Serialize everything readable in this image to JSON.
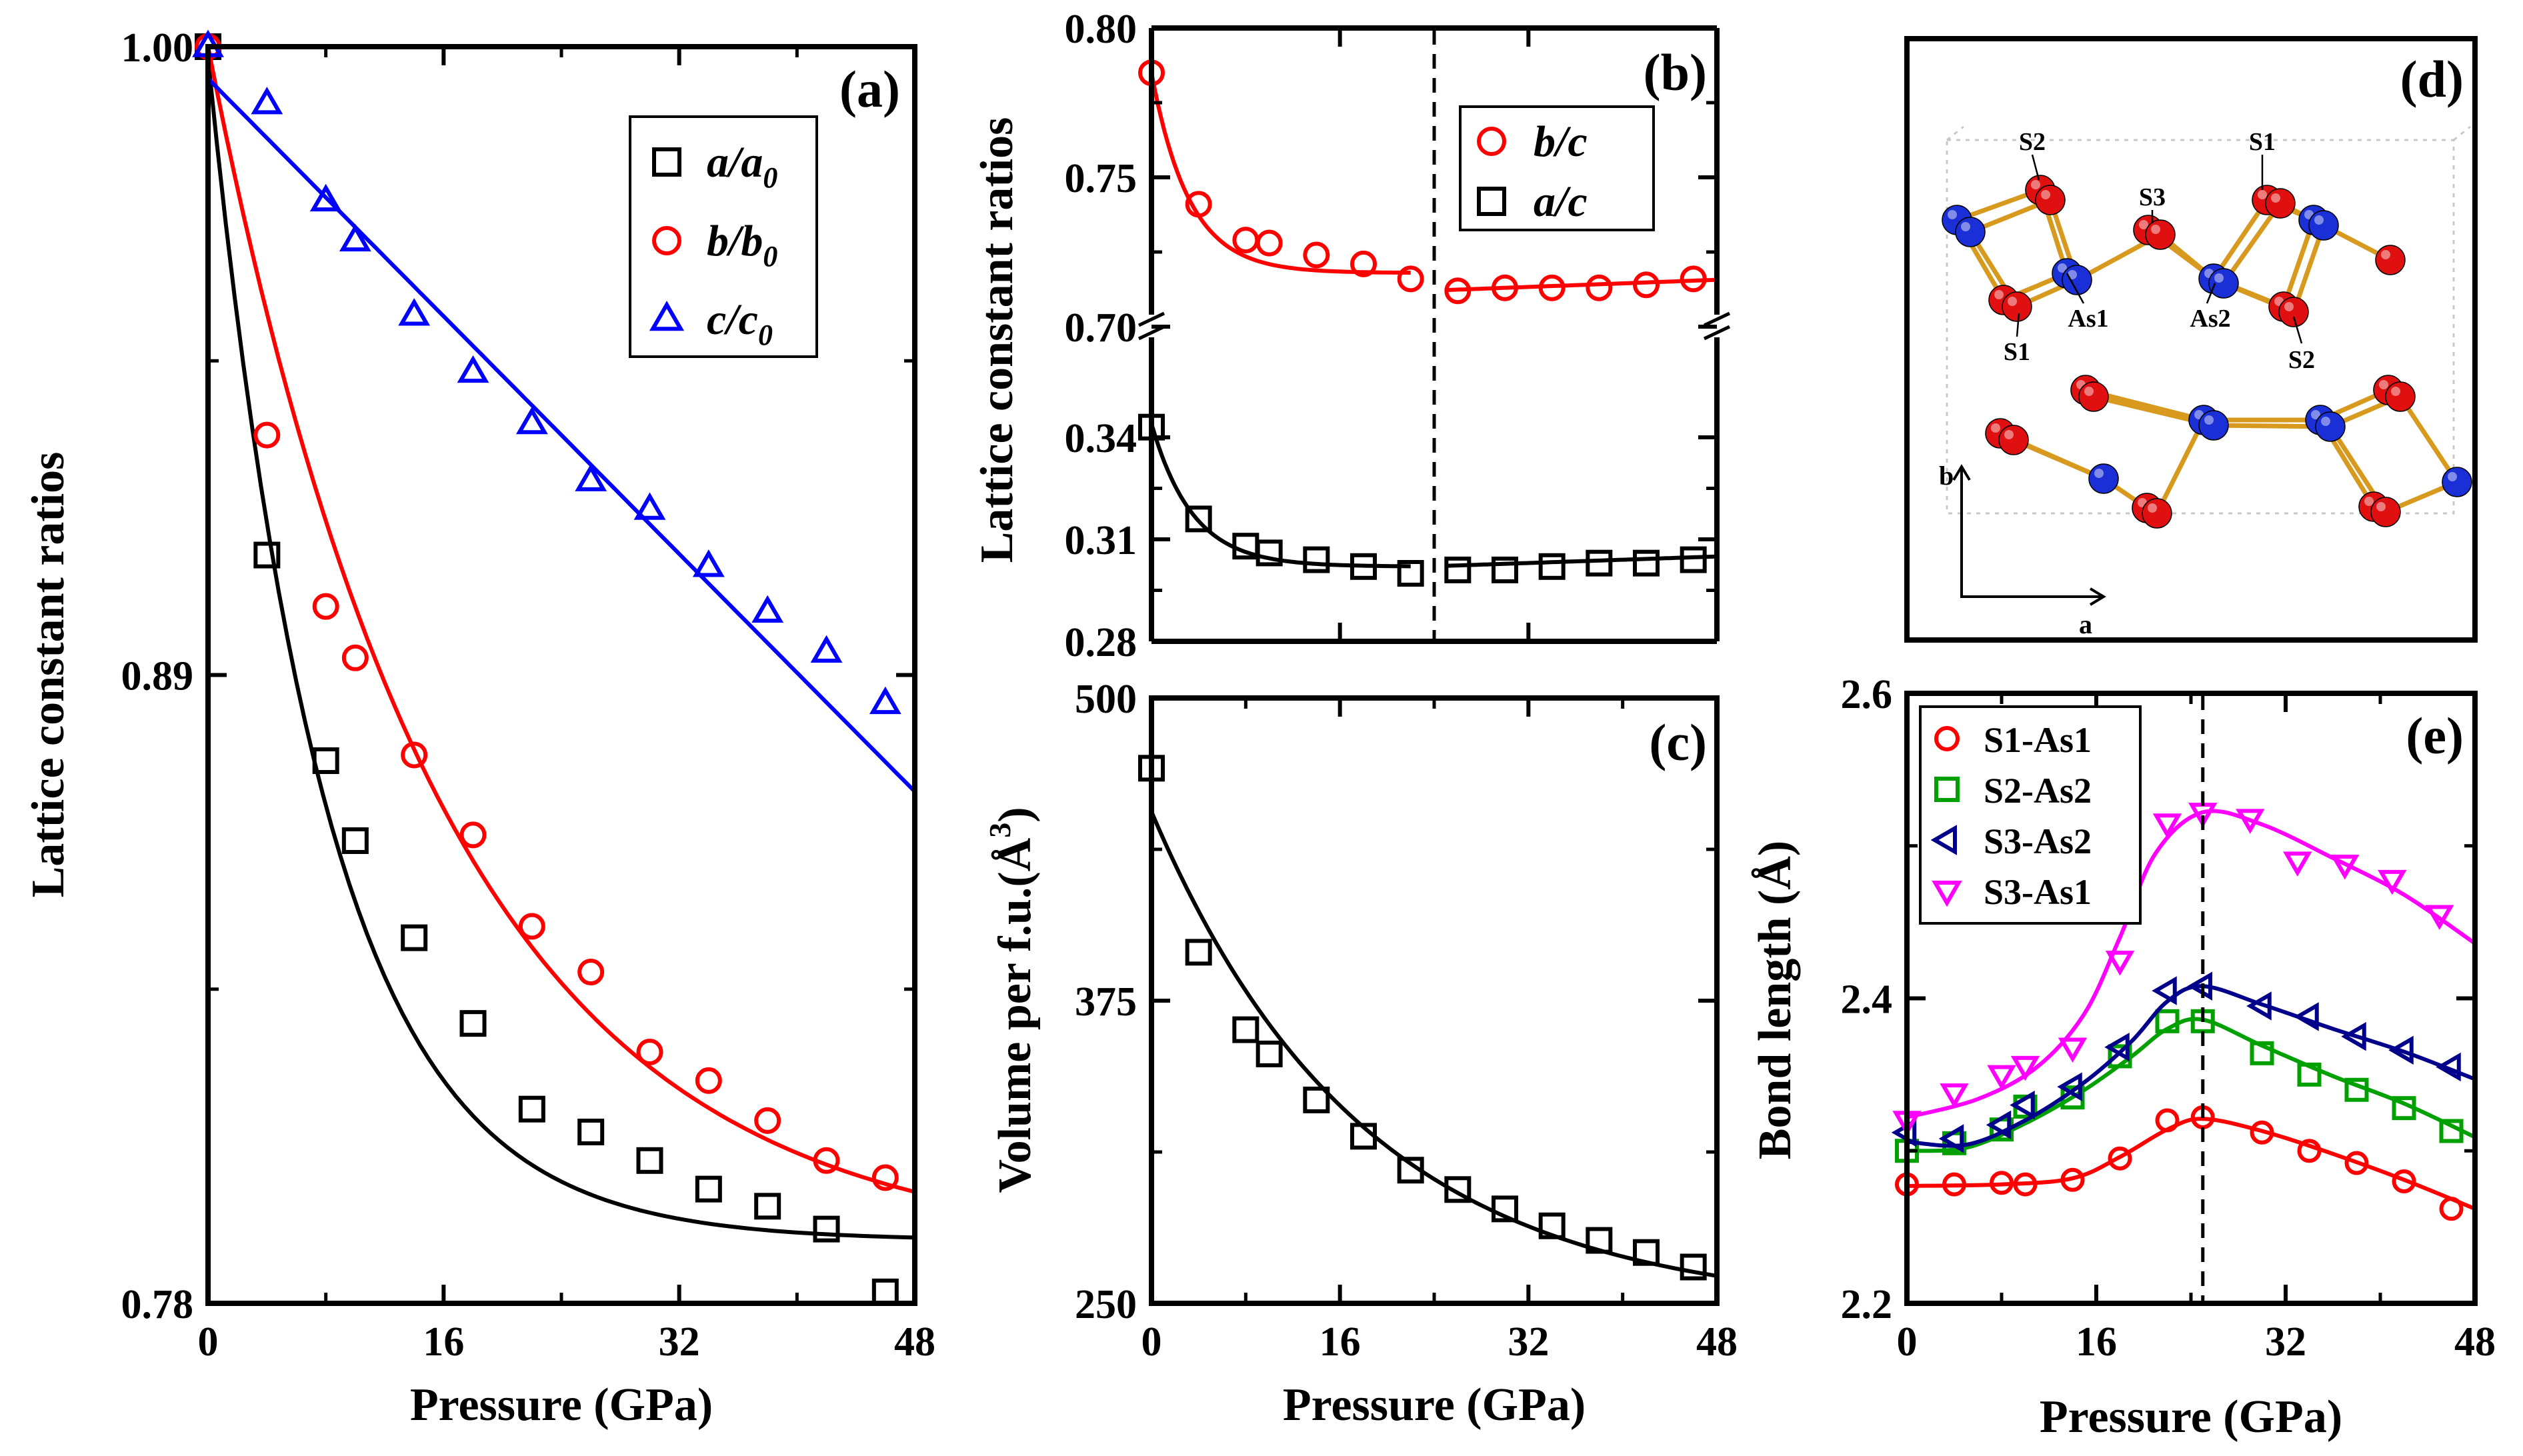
{
  "chart_data": [
    {
      "id": "a",
      "type": "scatter",
      "panel_label": "(a)",
      "xlabel": "Pressure (GPa)",
      "ylabel": "Lattice constant ratios",
      "xlim": [
        0,
        48
      ],
      "ylim": [
        0.78,
        1.0
      ],
      "xticks": [
        0,
        16,
        32,
        48
      ],
      "yticks": [
        0.78,
        0.89,
        1.0
      ],
      "ytick_labels": [
        "0.78",
        "0.89",
        "1.00"
      ],
      "legend": [
        {
          "label": "a/a",
          "sub": "0",
          "series": 0
        },
        {
          "label": "b/b",
          "sub": "0",
          "series": 1
        },
        {
          "label": "c/c",
          "sub": "0",
          "series": 2
        }
      ],
      "series": [
        {
          "name": "a/a0",
          "marker": "square",
          "color": "#000000",
          "x": [
            0,
            4,
            8,
            10,
            14,
            18,
            22,
            26,
            30,
            34,
            38,
            42,
            46
          ],
          "y": [
            1.0,
            0.911,
            0.875,
            0.861,
            0.844,
            0.829,
            0.814,
            0.81,
            0.805,
            0.8,
            0.797,
            0.793,
            0.782
          ],
          "fit_x": [
            0,
            48
          ],
          "fit": {
            "kind": "exp",
            "A": 0.207,
            "tau": 8.0,
            "c": 0.791
          }
        },
        {
          "name": "b/b0",
          "marker": "circle",
          "color": "#ff0000",
          "x": [
            0,
            4,
            8,
            10,
            14,
            18,
            22,
            26,
            30,
            34,
            38,
            42,
            46
          ],
          "y": [
            1.0,
            0.932,
            0.902,
            0.893,
            0.876,
            0.862,
            0.846,
            0.838,
            0.824,
            0.819,
            0.812,
            0.805,
            0.802
          ],
          "fit_x": [
            0,
            48
          ],
          "fit": {
            "kind": "exp",
            "A": 0.211,
            "tau": 16.0,
            "c": 0.789
          }
        },
        {
          "name": "c/c0",
          "marker": "triangle-up",
          "color": "#0000ff",
          "x": [
            0,
            4,
            8,
            10,
            14,
            18,
            22,
            26,
            30,
            34,
            38,
            42,
            46
          ],
          "y": [
            1.0,
            0.99,
            0.973,
            0.966,
            0.953,
            0.943,
            0.934,
            0.924,
            0.919,
            0.909,
            0.901,
            0.894,
            0.885
          ],
          "fit_x": [
            0,
            48
          ],
          "fit": {
            "kind": "linear",
            "m": -0.0026,
            "b": 0.9944
          }
        }
      ]
    },
    {
      "id": "b",
      "type": "scatter",
      "panel_label": "(b)",
      "xlabel": "",
      "ylabel": "Lattice constant ratios",
      "xlim": [
        0,
        48
      ],
      "axis_break": true,
      "upper": {
        "ylim": [
          0.7,
          0.8
        ],
        "yticks": [
          0.7,
          0.75,
          0.8
        ],
        "ytick_labels": [
          "0.70",
          "0.75",
          "0.80"
        ]
      },
      "lower": {
        "ylim": [
          0.28,
          0.35
        ],
        "yticks": [
          0.28,
          0.31,
          0.34
        ],
        "ytick_labels": [
          "0.28",
          "0.31",
          "0.34"
        ]
      },
      "vline_x": 24,
      "legend": [
        {
          "label": "b/c",
          "series": 0
        },
        {
          "label": "a/c",
          "series": 1
        }
      ],
      "series": [
        {
          "name": "b/c",
          "marker": "circle",
          "color": "#ff0000",
          "axis": "upper",
          "x": [
            0,
            4,
            8,
            10,
            14,
            18,
            22,
            26,
            30,
            34,
            38,
            42,
            46
          ],
          "y": [
            0.785,
            0.741,
            0.729,
            0.728,
            0.724,
            0.721,
            0.716,
            0.712,
            0.713,
            0.713,
            0.713,
            0.714,
            0.716
          ],
          "fit_segments": [
            {
              "x": [
                0,
                22
              ],
              "kind": "exp",
              "A": 0.067,
              "tau": 3.2,
              "c": 0.718
            },
            {
              "x": [
                25,
                48
              ],
              "kind": "linear",
              "m": 0.00015,
              "b": 0.7085
            }
          ]
        },
        {
          "name": "a/c",
          "marker": "square",
          "color": "#000000",
          "axis": "lower",
          "x": [
            0,
            4,
            8,
            10,
            14,
            18,
            22,
            26,
            30,
            34,
            38,
            42,
            46
          ],
          "y": [
            0.343,
            0.316,
            0.308,
            0.306,
            0.304,
            0.302,
            0.3,
            0.301,
            0.301,
            0.302,
            0.303,
            0.303,
            0.304
          ],
          "fit_segments": [
            {
              "x": [
                0,
                22
              ],
              "kind": "exp",
              "A": 0.042,
              "tau": 3.5,
              "c": 0.302
            },
            {
              "x": [
                25,
                48
              ],
              "kind": "linear",
              "m": 0.00012,
              "b": 0.2992
            }
          ]
        }
      ]
    },
    {
      "id": "c",
      "type": "scatter",
      "panel_label": "(c)",
      "xlabel": "Pressure (GPa)",
      "ylabel": "Volume per f.u.(Å",
      "ylabel_sup": "3",
      "ylabel_tail": ")",
      "xlim": [
        0,
        48
      ],
      "ylim": [
        250,
        500
      ],
      "xticks": [
        0,
        16,
        32,
        48
      ],
      "yticks": [
        250,
        375,
        500
      ],
      "ytick_labels": [
        "250",
        "375",
        "500"
      ],
      "series": [
        {
          "name": "Volume",
          "marker": "square",
          "color": "#000000",
          "x": [
            0,
            4,
            8,
            10,
            14,
            18,
            22,
            26,
            30,
            34,
            38,
            42,
            46
          ],
          "y": [
            471,
            395,
            363,
            353,
            334,
            319,
            305,
            297,
            289,
            282,
            276,
            271,
            265
          ],
          "fit_x": [
            0,
            48
          ],
          "fit": {
            "kind": "exp",
            "A": 206,
            "tau": 18.0,
            "c": 247
          }
        }
      ]
    },
    {
      "id": "d",
      "type": "structure",
      "panel_label": "(d)",
      "atom_labels": [
        "S2",
        "S3",
        "S1",
        "As1",
        "As2",
        "S1",
        "S2"
      ],
      "axis_labels": [
        "b",
        "a"
      ],
      "colors": {
        "sulfur": "#e01010",
        "arsenic": "#1a2fd6",
        "bond": "#d79a1e"
      }
    },
    {
      "id": "e",
      "type": "scatter",
      "panel_label": "(e)",
      "xlabel": "Pressure (GPa)",
      "ylabel": "Bond length (Å)",
      "xlim": [
        0,
        48
      ],
      "ylim": [
        2.2,
        2.6
      ],
      "xticks": [
        0,
        16,
        32,
        48
      ],
      "yticks": [
        2.2,
        2.4,
        2.6
      ],
      "ytick_labels": [
        "2.2",
        "2.4",
        "2.6"
      ],
      "vline_x": 25,
      "legend": [
        {
          "label": "S1-As1",
          "series": 0
        },
        {
          "label": "S2-As2",
          "series": 1
        },
        {
          "label": "S3-As2",
          "series": 2
        },
        {
          "label": "S3-As1",
          "series": 3
        }
      ],
      "series": [
        {
          "name": "S1-As1",
          "marker": "circle",
          "color": "#ff0000",
          "x": [
            0,
            4,
            8,
            10,
            14,
            18,
            22,
            25,
            30,
            34,
            38,
            42,
            46
          ],
          "y": [
            2.278,
            2.278,
            2.279,
            2.278,
            2.281,
            2.295,
            2.32,
            2.322,
            2.312,
            2.3,
            2.292,
            2.28,
            2.262
          ],
          "fit_points": [
            [
              0,
              2.277
            ],
            [
              8,
              2.278
            ],
            [
              14,
              2.282
            ],
            [
              18,
              2.296
            ],
            [
              22,
              2.314
            ],
            [
              25,
              2.321
            ],
            [
              30,
              2.313
            ],
            [
              36,
              2.298
            ],
            [
              42,
              2.281
            ],
            [
              48,
              2.262
            ]
          ]
        },
        {
          "name": "S2-As2",
          "marker": "square",
          "color": "#00a000",
          "x": [
            0,
            4,
            8,
            10,
            14,
            18,
            22,
            25,
            30,
            34,
            38,
            42,
            46
          ],
          "y": [
            2.3,
            2.305,
            2.314,
            2.329,
            2.335,
            2.362,
            2.385,
            2.385,
            2.364,
            2.35,
            2.34,
            2.328,
            2.313
          ],
          "fit_points": [
            [
              0,
              2.3
            ],
            [
              5,
              2.302
            ],
            [
              10,
              2.318
            ],
            [
              15,
              2.34
            ],
            [
              19,
              2.362
            ],
            [
              22,
              2.38
            ],
            [
              25,
              2.386
            ],
            [
              30,
              2.369
            ],
            [
              36,
              2.349
            ],
            [
              42,
              2.331
            ],
            [
              48,
              2.309
            ]
          ]
        },
        {
          "name": "S3-As2",
          "marker": "triangle-left",
          "color": "#00008b",
          "x": [
            0,
            4,
            8,
            10,
            14,
            18,
            22,
            25,
            30,
            34,
            38,
            42,
            46
          ],
          "y": [
            2.312,
            2.308,
            2.317,
            2.33,
            2.342,
            2.368,
            2.405,
            2.408,
            2.395,
            2.388,
            2.375,
            2.366,
            2.355
          ],
          "fit_points": [
            [
              0,
              2.306
            ],
            [
              5,
              2.304
            ],
            [
              10,
              2.32
            ],
            [
              15,
              2.345
            ],
            [
              19,
              2.372
            ],
            [
              22,
              2.398
            ],
            [
              25,
              2.408
            ],
            [
              30,
              2.396
            ],
            [
              36,
              2.38
            ],
            [
              42,
              2.365
            ],
            [
              48,
              2.347
            ]
          ]
        },
        {
          "name": "S3-As1",
          "marker": "triangle-down",
          "color": "#ff00ff",
          "x": [
            0,
            4,
            8,
            10,
            14,
            18,
            22,
            25,
            29,
            33,
            37,
            41,
            45
          ],
          "y": [
            2.32,
            2.338,
            2.35,
            2.356,
            2.368,
            2.425,
            2.515,
            2.522,
            2.518,
            2.49,
            2.488,
            2.478,
            2.455
          ],
          "fit_points": [
            [
              0,
              2.322
            ],
            [
              6,
              2.334
            ],
            [
              11,
              2.355
            ],
            [
              15,
              2.39
            ],
            [
              18,
              2.44
            ],
            [
              21,
              2.495
            ],
            [
              25,
              2.522
            ],
            [
              30,
              2.514
            ],
            [
              36,
              2.492
            ],
            [
              42,
              2.468
            ],
            [
              48,
              2.436
            ]
          ]
        }
      ]
    }
  ]
}
